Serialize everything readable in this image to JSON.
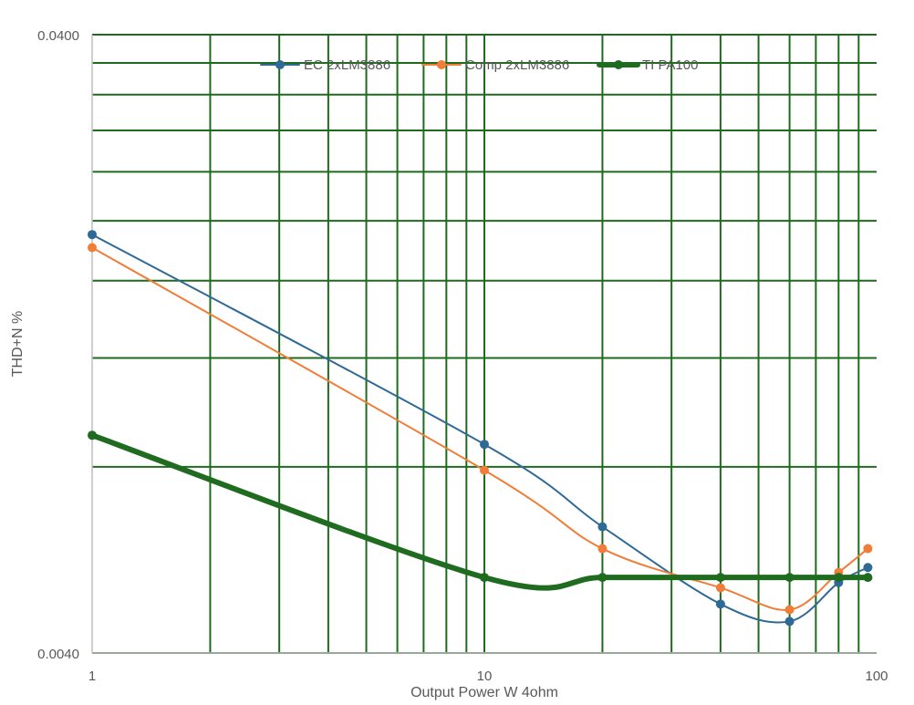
{
  "chart_data": {
    "type": "line",
    "xlabel": "Output Power W 4ohm",
    "ylabel": "THD+N %",
    "x_scale": "log",
    "y_scale": "log",
    "xlim": [
      1,
      100
    ],
    "ylim": [
      0.004,
      0.04
    ],
    "x_tick_labels": [
      "1",
      "10",
      "100"
    ],
    "y_tick_labels": [
      "0.0040",
      "0.0400"
    ],
    "grid": "on",
    "grid_color": "#1e6b1e",
    "legend_position": "top",
    "series": [
      {
        "name": "EC 2xLM3886",
        "color": "#2f6a96",
        "line_width": 2,
        "x": [
          1,
          10,
          20,
          40,
          60,
          80,
          95
        ],
        "y": [
          0.019,
          0.0087,
          0.0064,
          0.0048,
          0.0045,
          0.0052,
          0.0055
        ]
      },
      {
        "name": "Comp 2xLM3886",
        "color": "#f07d38",
        "line_width": 2,
        "x": [
          1,
          10,
          20,
          40,
          60,
          80,
          95
        ],
        "y": [
          0.0181,
          0.0079,
          0.0059,
          0.0051,
          0.0047,
          0.0054,
          0.0059
        ]
      },
      {
        "name": "TI PA100",
        "color": "#1f6b1f",
        "line_width": 6,
        "x": [
          1,
          10,
          20,
          40,
          60,
          80,
          95
        ],
        "y": [
          0.009,
          0.0053,
          0.0053,
          0.0053,
          0.0053,
          0.0053,
          0.0053
        ]
      }
    ]
  }
}
